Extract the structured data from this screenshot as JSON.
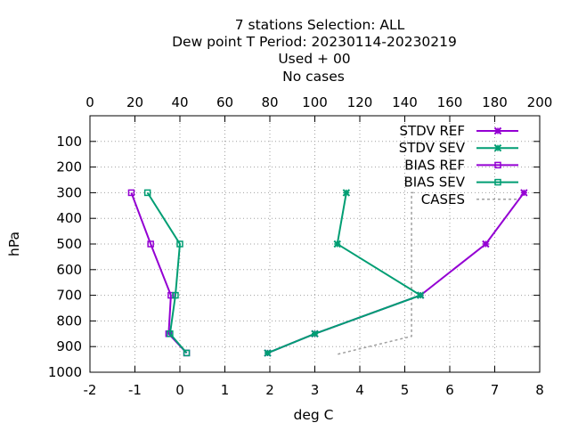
{
  "title_lines": [
    "7 stations Selection: ALL",
    "Dew point T  Period: 20230114-20230219",
    "Used   + 00",
    "No cases"
  ],
  "colors": {
    "ref": "#9400d3",
    "sev": "#009e73",
    "cases": "#a0a0a0",
    "grid": "#a0a0a0",
    "axis": "#000000"
  },
  "chart_data": {
    "type": "line",
    "xlabel": "deg C",
    "ylabel": "hPa",
    "xlim": [
      -2,
      8
    ],
    "x2lim": [
      0,
      200
    ],
    "ylim": [
      1000,
      0
    ],
    "y_inverted": true,
    "grid": true,
    "legend_position": "top-right",
    "x_ticks": [
      "-2",
      "-1",
      "0",
      "1",
      "2",
      "3",
      "4",
      "5",
      "6",
      "7",
      "8"
    ],
    "x2_ticks": [
      "0",
      "20",
      "40",
      "60",
      "80",
      "100",
      "120",
      "140",
      "160",
      "180",
      "200"
    ],
    "y_ticks": [
      "100",
      "200",
      "300",
      "400",
      "500",
      "600",
      "700",
      "800",
      "900",
      "1000"
    ],
    "series": [
      {
        "name": "STDV REF",
        "marker": "x",
        "color_key": "ref",
        "x": [
          7.65,
          6.8,
          5.35,
          3.0,
          1.95
        ],
        "y": [
          300,
          500,
          700,
          850,
          925
        ]
      },
      {
        "name": "STDV SEV",
        "marker": "x",
        "color_key": "sev",
        "x": [
          3.7,
          3.5,
          5.35,
          3.0,
          1.95
        ],
        "y": [
          300,
          500,
          700,
          850,
          925
        ]
      },
      {
        "name": "BIAS REF",
        "marker": "square",
        "color_key": "ref",
        "x": [
          -1.08,
          -0.65,
          -0.2,
          -0.25,
          0.15
        ],
        "y": [
          300,
          500,
          700,
          850,
          925
        ]
      },
      {
        "name": "BIAS SEV",
        "marker": "square",
        "color_key": "sev",
        "x": [
          -0.72,
          0.0,
          -0.1,
          -0.22,
          0.15
        ],
        "y": [
          300,
          500,
          700,
          850,
          925
        ]
      },
      {
        "name": "CASES",
        "marker": "none",
        "dashed": true,
        "color_key": "cases",
        "x2": [
          144,
          143,
          143,
          143,
          143,
          143,
          110
        ],
        "y": [
          300,
          300,
          500,
          700,
          850,
          860,
          930
        ]
      }
    ]
  }
}
